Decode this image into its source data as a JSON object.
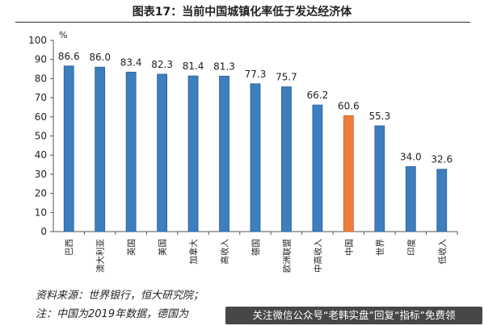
{
  "title": "图表17：当前中国城镇化率低于发达经济体",
  "chart_data": {
    "type": "bar",
    "unit_label": "%",
    "categories": [
      "巴西",
      "澳大利亚",
      "英国",
      "美国",
      "加拿大",
      "高收入",
      "德国",
      "欧洲联盟",
      "中高收入",
      "中国",
      "世界",
      "印度",
      "低收入"
    ],
    "values": [
      86.6,
      86.0,
      83.4,
      82.3,
      81.4,
      81.3,
      77.3,
      75.7,
      66.2,
      60.6,
      55.3,
      34.0,
      32.6
    ],
    "value_labels": [
      "86.6",
      "86.0",
      "83.4",
      "82.3",
      "81.4",
      "81.3",
      "77.3",
      "75.7",
      "66.2",
      "60.6",
      "55.3",
      "34.0",
      "32.6"
    ],
    "highlight_index": 9,
    "ylim": [
      0,
      100
    ],
    "yticks": [
      "0",
      "10",
      "20",
      "30",
      "40",
      "50",
      "60",
      "70",
      "80",
      "90",
      "100"
    ],
    "xlabel": "",
    "ylabel": "",
    "grid": false,
    "colors": {
      "bar": "#3d7ebf",
      "bar_edge": "#2c5f93",
      "highlight": "#ef7d3a",
      "highlight_edge": "#c8602a"
    }
  },
  "source": "资料来源：世界银行，恒大研究院；",
  "note": "注：中国为2019年数据，德国为",
  "watermark": "关注微信公众号“老韩实盘”回复“指标”免费领"
}
